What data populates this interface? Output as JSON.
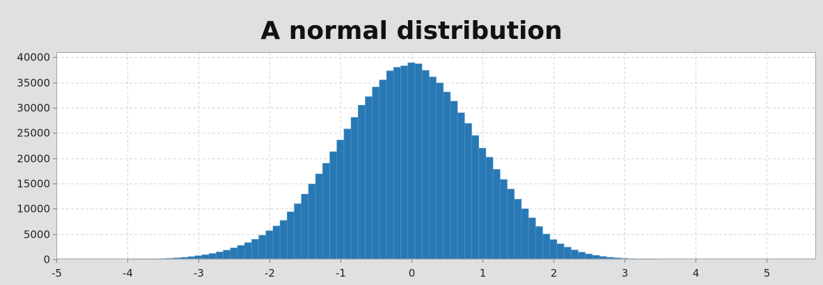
{
  "chart_data": {
    "type": "bar",
    "title": "A normal distribution",
    "xlabel": "",
    "ylabel": "",
    "xlim": [
      -5,
      5.7
    ],
    "ylim": [
      0,
      41000
    ],
    "x_ticks": [
      "-5",
      "-4",
      "-3",
      "-2",
      "-1",
      "0",
      "1",
      "2",
      "3",
      "4",
      "5"
    ],
    "y_ticks": [
      "0",
      "5000",
      "10000",
      "15000",
      "20000",
      "25000",
      "30000",
      "35000",
      "40000"
    ],
    "grid": true,
    "legend": "none",
    "bar_color": "#2878b4",
    "bin_width": 0.1,
    "bins": [
      {
        "x": -3.9,
        "value": 30
      },
      {
        "x": -3.8,
        "value": 50
      },
      {
        "x": -3.7,
        "value": 70
      },
      {
        "x": -3.6,
        "value": 100
      },
      {
        "x": -3.5,
        "value": 140
      },
      {
        "x": -3.4,
        "value": 200
      },
      {
        "x": -3.3,
        "value": 280
      },
      {
        "x": -3.2,
        "value": 380
      },
      {
        "x": -3.1,
        "value": 520
      },
      {
        "x": -3.0,
        "value": 700
      },
      {
        "x": -2.9,
        "value": 900
      },
      {
        "x": -2.8,
        "value": 1150
      },
      {
        "x": -2.7,
        "value": 1450
      },
      {
        "x": -2.6,
        "value": 1800
      },
      {
        "x": -2.5,
        "value": 2250
      },
      {
        "x": -2.4,
        "value": 2750
      },
      {
        "x": -2.3,
        "value": 3300
      },
      {
        "x": -2.2,
        "value": 3950
      },
      {
        "x": -2.1,
        "value": 4750
      },
      {
        "x": -2.0,
        "value": 5650
      },
      {
        "x": -1.9,
        "value": 6600
      },
      {
        "x": -1.8,
        "value": 7700
      },
      {
        "x": -1.7,
        "value": 9400
      },
      {
        "x": -1.6,
        "value": 11000
      },
      {
        "x": -1.5,
        "value": 12900
      },
      {
        "x": -1.4,
        "value": 14900
      },
      {
        "x": -1.3,
        "value": 16900
      },
      {
        "x": -1.2,
        "value": 19000
      },
      {
        "x": -1.1,
        "value": 21300
      },
      {
        "x": -1.0,
        "value": 23600
      },
      {
        "x": -0.9,
        "value": 25800
      },
      {
        "x": -0.8,
        "value": 28100
      },
      {
        "x": -0.7,
        "value": 30500
      },
      {
        "x": -0.6,
        "value": 32200
      },
      {
        "x": -0.5,
        "value": 34100
      },
      {
        "x": -0.4,
        "value": 35500
      },
      {
        "x": -0.3,
        "value": 37300
      },
      {
        "x": -0.2,
        "value": 38000
      },
      {
        "x": -0.1,
        "value": 38300
      },
      {
        "x": 0.0,
        "value": 38900
      },
      {
        "x": 0.1,
        "value": 38700
      },
      {
        "x": 0.2,
        "value": 37400
      },
      {
        "x": 0.3,
        "value": 36100
      },
      {
        "x": 0.4,
        "value": 34900
      },
      {
        "x": 0.5,
        "value": 33100
      },
      {
        "x": 0.6,
        "value": 31300
      },
      {
        "x": 0.7,
        "value": 29000
      },
      {
        "x": 0.8,
        "value": 26900
      },
      {
        "x": 0.9,
        "value": 24500
      },
      {
        "x": 1.0,
        "value": 22000
      },
      {
        "x": 1.1,
        "value": 20200
      },
      {
        "x": 1.2,
        "value": 17800
      },
      {
        "x": 1.3,
        "value": 15800
      },
      {
        "x": 1.4,
        "value": 13900
      },
      {
        "x": 1.5,
        "value": 11900
      },
      {
        "x": 1.6,
        "value": 10000
      },
      {
        "x": 1.7,
        "value": 8200
      },
      {
        "x": 1.8,
        "value": 6500
      },
      {
        "x": 1.9,
        "value": 5000
      },
      {
        "x": 2.0,
        "value": 3900
      },
      {
        "x": 2.1,
        "value": 3050
      },
      {
        "x": 2.2,
        "value": 2400
      },
      {
        "x": 2.3,
        "value": 1850
      },
      {
        "x": 2.4,
        "value": 1400
      },
      {
        "x": 2.5,
        "value": 1050
      },
      {
        "x": 2.6,
        "value": 780
      },
      {
        "x": 2.7,
        "value": 560
      },
      {
        "x": 2.8,
        "value": 400
      },
      {
        "x": 2.9,
        "value": 280
      },
      {
        "x": 3.0,
        "value": 190
      },
      {
        "x": 3.1,
        "value": 130
      },
      {
        "x": 3.2,
        "value": 85
      },
      {
        "x": 3.3,
        "value": 55
      },
      {
        "x": 3.4,
        "value": 35
      }
    ]
  }
}
